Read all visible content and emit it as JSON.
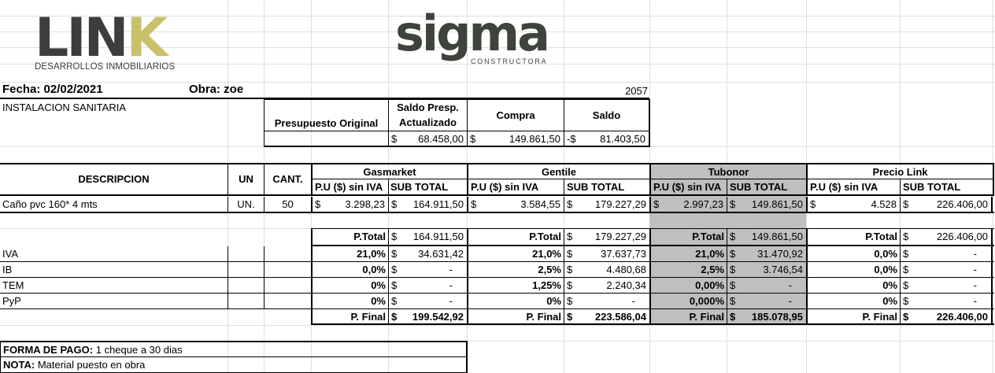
{
  "logos": {
    "link_main": "LINK",
    "link_sub": "DESARROLLOS INMOBILIARIOS",
    "sigma_main": "sigma",
    "sigma_sub": "CONSTRUCTORA",
    "link_k_color": "#c8c16a",
    "link_color": "#3d3d3d",
    "sigma_color": "#3e433c"
  },
  "header": {
    "fecha": "Fecha: 02/02/2021",
    "obra": "Obra: zoe",
    "code": "2057",
    "section": "INSTALACION SANITARIA"
  },
  "summary": {
    "presupuesto_label": "Presupuesto Original",
    "saldo_presp_label_1": "Saldo Presp.",
    "saldo_presp_label_2": "Actualizado",
    "compra_label": "Compra",
    "saldo_label": "Saldo",
    "currency": "$",
    "neg_currency": "-$",
    "saldo_presp_value": "68.458,00",
    "compra_value": "149.861,50",
    "saldo_value": "81.403,50"
  },
  "table": {
    "col_descripcion": "DESCRIPCION",
    "col_un": "UN",
    "col_cant": "CANT.",
    "providers": [
      "Gasmarket",
      "Gentile",
      "Tubonor",
      "Precio Link"
    ],
    "sub_pu": "P.U ($) sin IVA",
    "sub_total": "SUB TOTAL",
    "item": {
      "descripcion": "Caño pvc 160* 4 mts",
      "un": "UN.",
      "cant": "50",
      "gasmarket_pu": "3.298,23",
      "gasmarket_sub": "164.911,50",
      "gentile_pu": "3.584,55",
      "gentile_sub": "179.227,29",
      "tubonor_pu": "2.997,23",
      "tubonor_sub": "149.861,50",
      "link_pu": "4.528",
      "link_sub": "226.406,00"
    },
    "ptotal_label": "P.Total",
    "pfinal_label": "P. Final",
    "dash": "-",
    "ptotal": [
      "164.911,50",
      "179.227,29",
      "149.861,50",
      "226.406,00"
    ],
    "taxes": [
      {
        "name": "IVA",
        "pct": [
          "21,0%",
          "21,0%",
          "21,0%",
          "0,0%"
        ],
        "val": [
          "34.631,42",
          "37.637,73",
          "31.470,92",
          "-"
        ]
      },
      {
        "name": "IB",
        "pct": [
          "0,0%",
          "2,5%",
          "2,5%",
          "0,0%"
        ],
        "val": [
          "-",
          "4.480,68",
          "3.746,54",
          "-"
        ]
      },
      {
        "name": "TEM",
        "pct": [
          "0%",
          "1,25%",
          "0,00%",
          "0%"
        ],
        "val": [
          "-",
          "2.240,34",
          "-",
          "-"
        ]
      },
      {
        "name": "PyP",
        "pct": [
          "0%",
          "0%",
          "0,000%",
          "0%"
        ],
        "val": [
          "-",
          "-",
          "-",
          "-"
        ]
      }
    ],
    "pfinal": [
      "199.542,92",
      "223.586,04",
      "185.078,95",
      "226.406,00"
    ]
  },
  "footer": {
    "forma_label": "FORMA DE PAGO:",
    "forma_value": " 1 cheque a 30 dias",
    "nota_label": "NOTA:",
    "nota_value": " Material puesto en obra"
  }
}
